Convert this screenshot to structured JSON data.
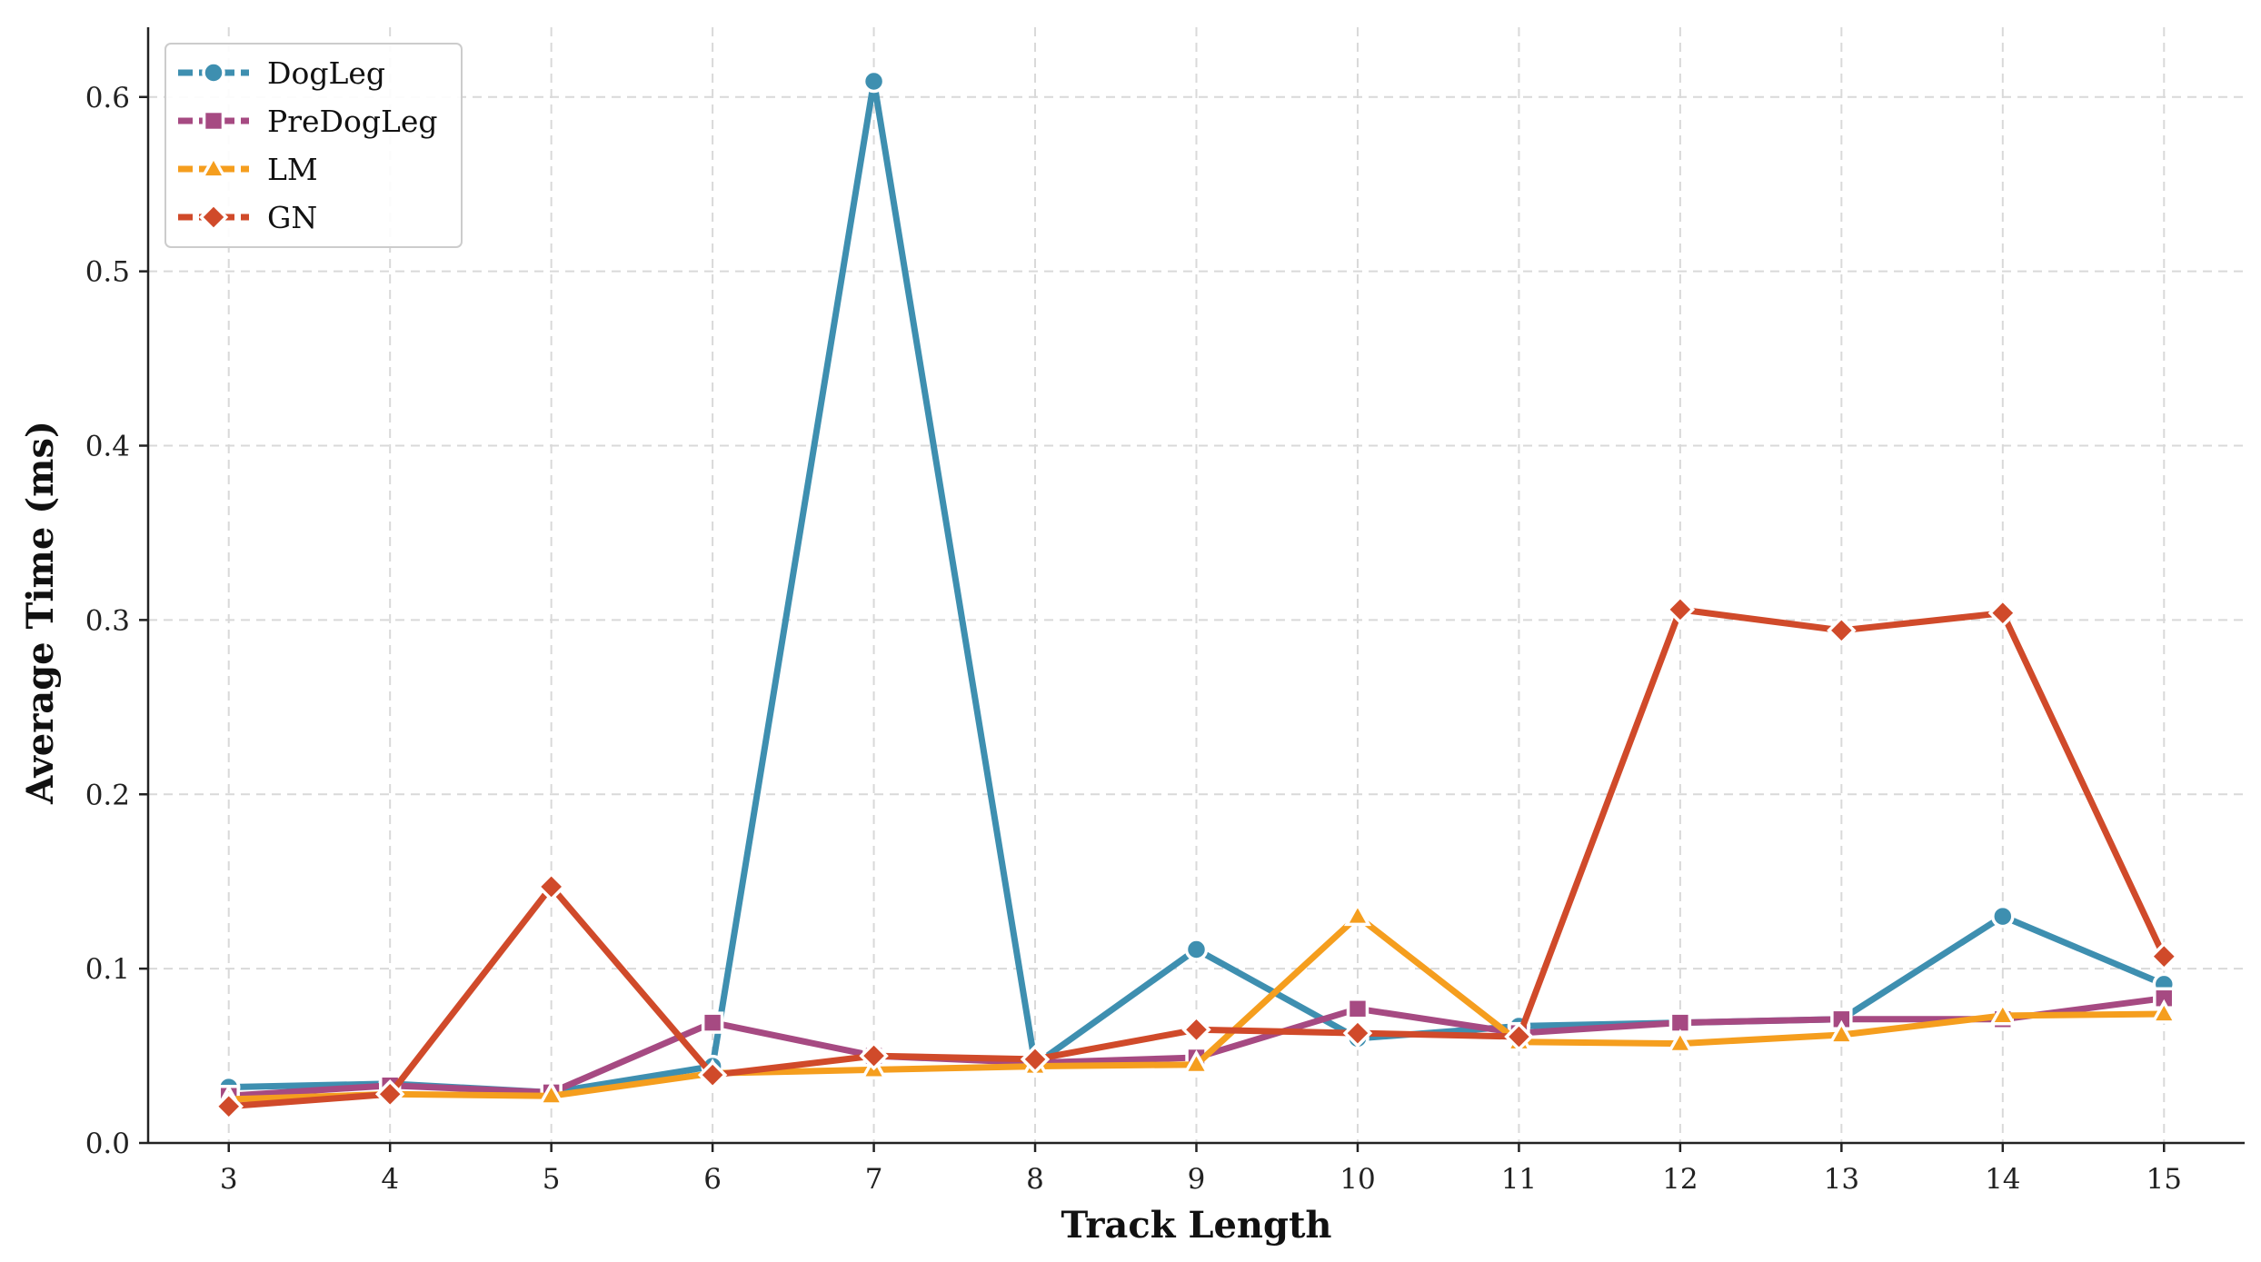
{
  "chart_data": {
    "type": "line",
    "title": "",
    "xlabel": "Track Length",
    "ylabel": "Average Time (ms)",
    "x": [
      3,
      4,
      5,
      6,
      7,
      8,
      9,
      10,
      11,
      12,
      13,
      14,
      15
    ],
    "xlim": [
      2.5,
      15.5
    ],
    "ylim": [
      0.0,
      0.64
    ],
    "yticks": [
      "0.0",
      "0.1",
      "0.2",
      "0.3",
      "0.4",
      "0.5",
      "0.6"
    ],
    "xticks": [
      "3",
      "4",
      "5",
      "6",
      "7",
      "8",
      "9",
      "10",
      "11",
      "12",
      "13",
      "14",
      "15"
    ],
    "grid": true,
    "legend_position": "top-left",
    "series": [
      {
        "name": "DogLeg",
        "color": "#3e8fb0",
        "marker": "circle",
        "values": [
          0.032,
          0.034,
          0.029,
          0.044,
          0.609,
          0.045,
          0.111,
          0.06,
          0.067,
          0.069,
          0.071,
          0.13,
          0.091
        ]
      },
      {
        "name": "PreDogLeg",
        "color": "#a64a82",
        "marker": "square",
        "values": [
          0.027,
          0.033,
          0.029,
          0.069,
          0.05,
          0.046,
          0.049,
          0.077,
          0.063,
          0.069,
          0.071,
          0.071,
          0.083
        ]
      },
      {
        "name": "LM",
        "color": "#f59e1e",
        "marker": "triangle",
        "values": [
          0.025,
          0.028,
          0.027,
          0.04,
          0.042,
          0.044,
          0.045,
          0.13,
          0.058,
          0.057,
          0.062,
          0.073,
          0.074
        ]
      },
      {
        "name": "GN",
        "color": "#d04a2a",
        "marker": "diamond",
        "values": [
          0.021,
          0.028,
          0.147,
          0.039,
          0.05,
          0.048,
          0.065,
          0.063,
          0.061,
          0.306,
          0.294,
          0.304,
          0.107
        ]
      }
    ]
  }
}
